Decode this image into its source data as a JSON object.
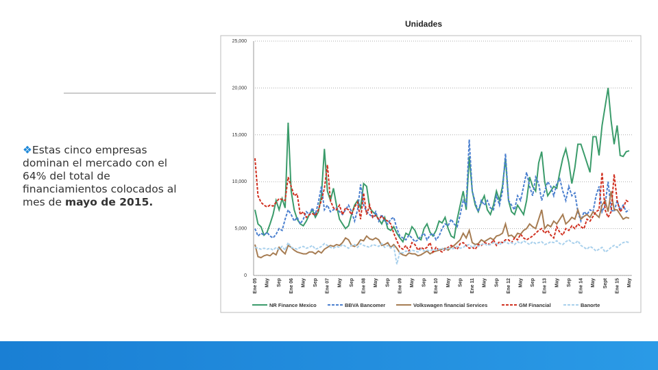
{
  "slide": {
    "text_parts": [
      "Estas cinco empresas dominan el mercado con el 64% del total de financiamientos colocados al mes de ",
      "mayo de 2015."
    ]
  },
  "chart_data": {
    "type": "line",
    "title": "Unidades",
    "categories": [
      "Ene 05",
      null,
      null,
      null,
      "May",
      null,
      null,
      null,
      "Sep",
      null,
      null,
      null,
      "Ene 06",
      null,
      null,
      null,
      "May",
      null,
      null,
      null,
      "Sep",
      null,
      null,
      null,
      "Ene 07",
      null,
      null,
      null,
      "May",
      null,
      null,
      null,
      "Sep",
      null,
      null,
      null,
      "Ene 08",
      null,
      null,
      null,
      "May",
      null,
      null,
      null,
      "Sep",
      null,
      null,
      null,
      "Ene 09",
      null,
      null,
      null,
      "May",
      null,
      null,
      null,
      "Sep",
      null,
      null,
      null,
      "Ene 10",
      null,
      null,
      null,
      "May",
      null,
      null,
      null,
      "Sep",
      null,
      null,
      null,
      "Ene 11",
      null,
      null,
      null,
      "May",
      null,
      null,
      null,
      "Sep",
      null,
      null,
      null,
      "Ene 12",
      null,
      null,
      null,
      "May",
      null,
      null,
      null,
      "Sep",
      null,
      null,
      null,
      "Ene 13",
      null,
      null,
      null,
      "May",
      null,
      null,
      null,
      "Sep",
      null,
      null,
      null,
      "Ene 14",
      null,
      null,
      null,
      "May",
      null,
      null,
      null,
      "Sept",
      null,
      null,
      null,
      "Ene 15",
      null,
      null,
      null,
      "May"
    ],
    "ylim": [
      0,
      25000
    ],
    "yticks": [
      0,
      {
        "value": 5000,
        "label": "5,000"
      },
      {
        "value": 10000,
        "label": "10,000"
      },
      {
        "value": 15000,
        "label": "15,000"
      },
      {
        "value": 20000,
        "label": "20,000"
      },
      {
        "value": 25000,
        "label": "25,000"
      }
    ],
    "grid": true,
    "series": [
      {
        "name": "NR Finance Mexico",
        "color": "#3a9b6a",
        "dashed": false,
        "values": [
          7000,
          5500,
          5200,
          4300,
          4600,
          5500,
          6500,
          8000,
          7000,
          8200,
          7200,
          16300,
          9000,
          7000,
          6000,
          5500,
          5300,
          5800,
          6500,
          7000,
          6200,
          6800,
          8500,
          13500,
          9000,
          8000,
          9300,
          7500,
          6000,
          5500,
          5000,
          5300,
          6500,
          7500,
          8000,
          7200,
          9800,
          9500,
          7200,
          6800,
          6500,
          6000,
          5500,
          6200,
          5000,
          4800,
          5200,
          4500,
          4000,
          3600,
          4500,
          4300,
          5200,
          4800,
          4000,
          3800,
          5000,
          5500,
          4600,
          4200,
          4800,
          5800,
          5600,
          6200,
          5000,
          4200,
          4000,
          6000,
          7500,
          9000,
          7000,
          12700,
          9000,
          7500,
          6800,
          7800,
          8500,
          7000,
          6500,
          7500,
          9000,
          8000,
          9500,
          12500,
          8000,
          6800,
          6500,
          7500,
          7000,
          6500,
          8000,
          10500,
          9500,
          9000,
          12000,
          13200,
          10000,
          8500,
          9000,
          9500,
          9300,
          11000,
          12500,
          13500,
          12000,
          9800,
          11500,
          14000,
          14000,
          13000,
          12000,
          11000,
          14800,
          14800,
          12800,
          16000,
          18000,
          20000,
          16500,
          14000,
          16000,
          12800,
          12700,
          13200,
          13300
        ]
      },
      {
        "name": "BBVA Bancomer",
        "color": "#4a7fcf",
        "dashed": true,
        "values": [
          5000,
          4200,
          4500,
          4300,
          4600,
          4200,
          4000,
          4400,
          5000,
          4800,
          6000,
          7000,
          6500,
          5800,
          6200,
          5500,
          6000,
          6800,
          6500,
          7200,
          6500,
          7800,
          9500,
          7000,
          7500,
          6800,
          7000,
          7200,
          6800,
          6500,
          7000,
          7500,
          6800,
          5800,
          7000,
          9700,
          7500,
          6800,
          6500,
          6200,
          6800,
          5800,
          6500,
          5800,
          5500,
          6000,
          6200,
          5000,
          4200,
          4000,
          3800,
          4300,
          4000,
          3600,
          3800,
          4200,
          4500,
          3800,
          4300,
          4500,
          3800,
          4200,
          5000,
          5500,
          5300,
          6000,
          5500,
          5200,
          6500,
          8000,
          7500,
          14500,
          9000,
          7800,
          6800,
          8000,
          7500,
          8000,
          7200,
          7000,
          8500,
          7500,
          9000,
          13000,
          8000,
          7500,
          7000,
          8500,
          8000,
          9500,
          11000,
          9500,
          8500,
          10500,
          9800,
          8000,
          9000,
          10000,
          9500,
          8500,
          9800,
          10300,
          9000,
          8000,
          9500,
          8500,
          8800,
          6800,
          5800,
          6800,
          6500,
          7000,
          6800,
          8500,
          9500,
          6800,
          7500,
          10000,
          7000,
          6800,
          8000,
          7000,
          7500,
          6800,
          7000
        ]
      },
      {
        "name": "Volkswagen financial Services",
        "color": "#a67c52",
        "dashed": false,
        "values": [
          3300,
          2000,
          1900,
          2100,
          2200,
          2100,
          2400,
          2200,
          3000,
          2600,
          2300,
          3200,
          3000,
          2700,
          2500,
          2400,
          2300,
          2300,
          2500,
          2500,
          2300,
          2600,
          2400,
          2800,
          3000,
          3200,
          3100,
          3300,
          3200,
          3500,
          4000,
          3800,
          3200,
          3100,
          3300,
          3800,
          3700,
          4200,
          3900,
          3800,
          4000,
          3800,
          3200,
          3300,
          3500,
          3000,
          3300,
          2900,
          2400,
          2200,
          2100,
          2400,
          2300,
          2300,
          2100,
          2200,
          2400,
          2600,
          2300,
          2500,
          2600,
          2700,
          2800,
          2900,
          2700,
          3000,
          3200,
          3500,
          3800,
          4500,
          4000,
          4800,
          3500,
          3300,
          3400,
          3800,
          3600,
          3800,
          4000,
          3800,
          4200,
          4300,
          4500,
          5500,
          4200,
          4300,
          4000,
          4500,
          4400,
          4800,
          5000,
          5500,
          5200,
          5000,
          6000,
          7000,
          5000,
          5400,
          5200,
          5800,
          5500,
          6000,
          6500,
          5500,
          5800,
          6200,
          6000,
          7000,
          6000,
          6300,
          6500,
          6200,
          6800,
          6500,
          6200,
          7500,
          8000,
          6800,
          9000,
          7000,
          7000,
          6500,
          6000,
          6200,
          6100
        ]
      },
      {
        "name": "GM Financial",
        "color": "#d03020",
        "dashed": true,
        "values": [
          12500,
          8500,
          7800,
          7500,
          7300,
          7500,
          7400,
          7800,
          8200,
          8100,
          8000,
          10500,
          9500,
          8500,
          8700,
          6500,
          6800,
          6200,
          6500,
          6600,
          6400,
          7000,
          8000,
          9300,
          11800,
          8000,
          7200,
          7000,
          7500,
          6500,
          7200,
          7000,
          6500,
          7300,
          7800,
          6000,
          8800,
          6500,
          7500,
          6200,
          6400,
          6000,
          6300,
          6000,
          5800,
          5500,
          4500,
          3700,
          3000,
          2800,
          3200,
          2600,
          3500,
          3300,
          2700,
          3000,
          2800,
          3000,
          3500,
          2500,
          3000,
          2700,
          2500,
          2800,
          3000,
          3200,
          3000,
          2800,
          3400,
          3500,
          3200,
          2900,
          3000,
          2800,
          3300,
          3200,
          3500,
          3400,
          3300,
          3800,
          3200,
          3600,
          3500,
          3800,
          3800,
          3500,
          4000,
          3800,
          4400,
          4000,
          3800,
          4000,
          4200,
          4500,
          4800,
          5000,
          4500,
          4800,
          4300,
          4000,
          5200,
          4600,
          4300,
          5000,
          4800,
          5300,
          5000,
          5500,
          5200,
          5000,
          6000,
          5800,
          6300,
          6800,
          7000,
          11000,
          7000,
          6200,
          6800,
          10800,
          8000,
          6800,
          7200,
          8000,
          7800
        ]
      },
      {
        "name": "Banorte",
        "color": "#a8d0ec",
        "dashed": true,
        "values": [
          3000,
          2900,
          2800,
          2900,
          2800,
          2900,
          2700,
          3000,
          2800,
          3100,
          2700,
          3500,
          3000,
          2900,
          2800,
          3000,
          3100,
          2900,
          3000,
          3200,
          2800,
          2900,
          3100,
          3400,
          3200,
          3000,
          2900,
          3100,
          3000,
          3300,
          3100,
          2900,
          3200,
          3300,
          3000,
          3400,
          3200,
          3100,
          3000,
          3300,
          3200,
          3100,
          3400,
          3000,
          3200,
          2900,
          3100,
          1200,
          2500,
          2400,
          2600,
          2500,
          2700,
          2600,
          2500,
          2800,
          2600,
          2700,
          2600,
          2800,
          2700,
          2800,
          2900,
          2700,
          3000,
          2800,
          2900,
          3100,
          2900,
          3000,
          3200,
          3300,
          3000,
          3200,
          3100,
          3300,
          3400,
          3200,
          3300,
          3500,
          3400,
          3300,
          3500,
          3600,
          3400,
          3500,
          3300,
          3600,
          3400,
          3700,
          3500,
          3300,
          3600,
          3400,
          3500,
          3600,
          3300,
          3400,
          3600,
          3500,
          3700,
          3400,
          3300,
          3600,
          3800,
          3500,
          3400,
          3700,
          3200,
          3000,
          2800,
          3100,
          2900,
          2600,
          2800,
          3000,
          2500,
          2700,
          3000,
          3200,
          3000,
          3300,
          3500,
          3600,
          3500
        ]
      }
    ]
  }
}
